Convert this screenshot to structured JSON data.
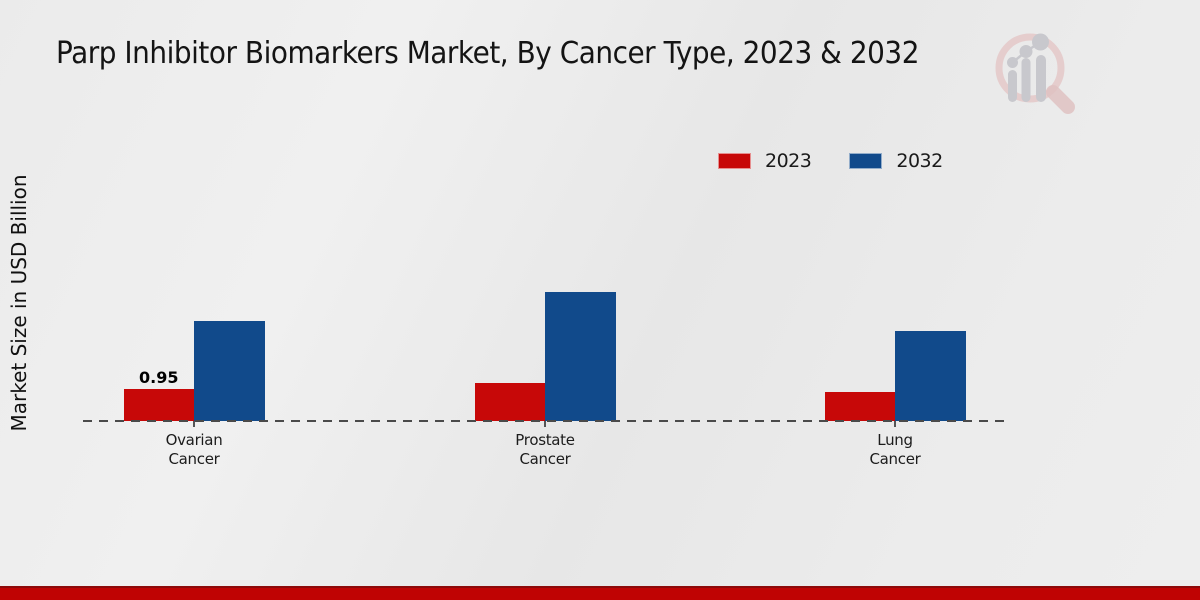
{
  "title": "Parp Inhibitor Biomarkers Market, By Cancer Type, 2023 & 2032",
  "legend": {
    "items": [
      {
        "label": "2023",
        "color": "#c70808"
      },
      {
        "label": "2032",
        "color": "#114a8b"
      }
    ]
  },
  "footer": {
    "strip_color": "#bf0303"
  },
  "watermark": {
    "icon": "magnifier-growth-chart-logo",
    "ring_color": "#e4c8c8",
    "bars_color": "#c8c8cd"
  },
  "chart_data": {
    "type": "bar",
    "title": "Parp Inhibitor Biomarkers Market, By Cancer Type, 2023 & 2032",
    "xlabel": "",
    "ylabel": "Market Size in USD Billion",
    "categories": [
      "Ovarian Cancer",
      "Prostate Cancer",
      "Lung Cancer"
    ],
    "series": [
      {
        "name": "2023",
        "color": "#c70808",
        "values": [
          0.95,
          1.15,
          0.88
        ],
        "labels": [
          "0.95",
          "",
          ""
        ]
      },
      {
        "name": "2032",
        "color": "#114a8b",
        "values": [
          3.0,
          3.9,
          2.7
        ],
        "labels": [
          "",
          "",
          ""
        ]
      }
    ],
    "ylim": [
      0,
      4.5
    ],
    "grid": false,
    "baseline_style": "dashed",
    "legend_position": "top-right"
  }
}
